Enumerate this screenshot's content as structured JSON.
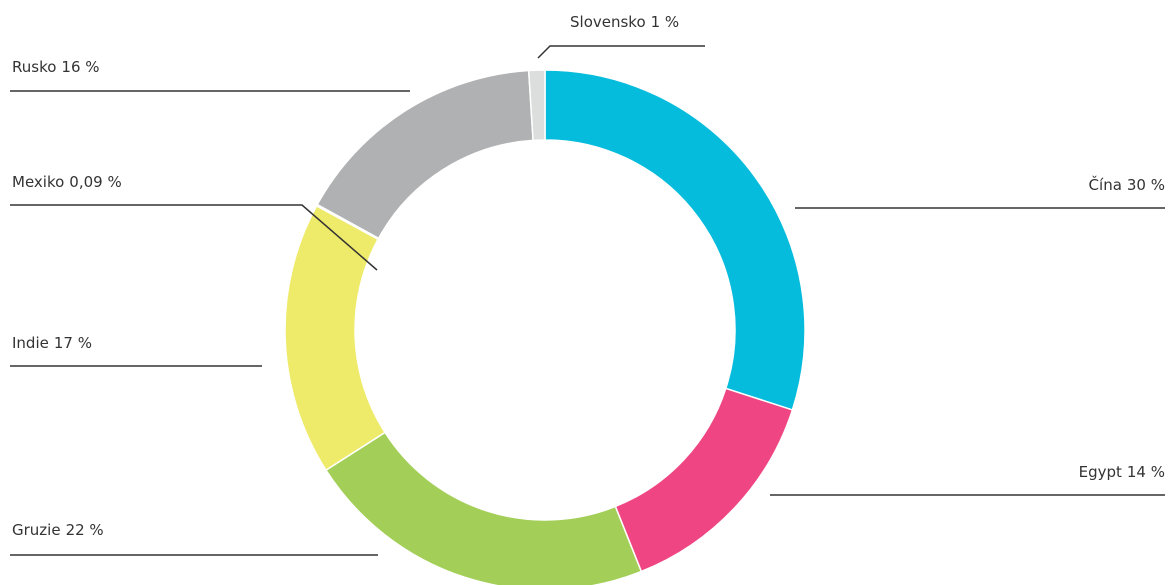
{
  "chart_data": {
    "type": "donut",
    "categories": [
      "Čína",
      "Egypt",
      "Gruzie",
      "Indie",
      "Mexiko",
      "Rusko",
      "Slovensko"
    ],
    "values": [
      30,
      14,
      22,
      17,
      0.09,
      16,
      1
    ],
    "value_labels": [
      "30 %",
      "14 %",
      "22 %",
      "17 %",
      "0,09 %",
      "16 %",
      "1 %"
    ],
    "colors": [
      "#05bcdd",
      "#ef4583",
      "#a3cf58",
      "#eeea6a",
      "#555555",
      "#b0b1b3",
      "#dcdddd"
    ]
  }
}
